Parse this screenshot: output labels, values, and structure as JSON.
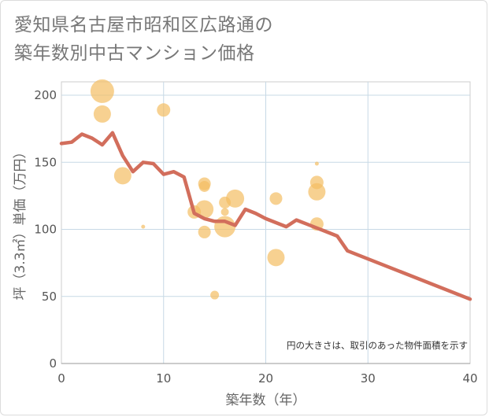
{
  "title_lines": [
    "愛知県名古屋市昭和区広路通の",
    "築年数別中古マンション価格"
  ],
  "colors": {
    "line": "#d26e5c",
    "bubble": "#f3bd63",
    "grid": "#c7d9e6",
    "plot_border": "#cccccc"
  },
  "chart_data": {
    "type": "scatter",
    "title": "愛知県名古屋市昭和区広路通の築年数別中古マンション価格",
    "xlabel": "築年数（年）",
    "ylabel": "坪（3.3㎡）単価（万円）",
    "xlim": [
      0,
      40
    ],
    "ylim": [
      0,
      210
    ],
    "xticks": [
      0,
      10,
      20,
      30,
      40
    ],
    "yticks": [
      0,
      50,
      100,
      150,
      200
    ],
    "grid": true,
    "annotation": "円の大きさは、取引のあった物件面積を示す",
    "series": [
      {
        "kind": "bubble",
        "points": [
          {
            "x": 4,
            "y": 203,
            "size": 15
          },
          {
            "x": 4,
            "y": 186,
            "size": 11
          },
          {
            "x": 10,
            "y": 189,
            "size": 8.5
          },
          {
            "x": 6,
            "y": 140,
            "size": 11
          },
          {
            "x": 8,
            "y": 102,
            "size": 2.5
          },
          {
            "x": 13,
            "y": 113,
            "size": 8.5
          },
          {
            "x": 14,
            "y": 134,
            "size": 8
          },
          {
            "x": 14,
            "y": 132,
            "size": 7
          },
          {
            "x": 14,
            "y": 115,
            "size": 11.5
          },
          {
            "x": 14,
            "y": 98,
            "size": 8
          },
          {
            "x": 15,
            "y": 51,
            "size": 5.5
          },
          {
            "x": 16,
            "y": 120,
            "size": 7.5
          },
          {
            "x": 16,
            "y": 113,
            "size": 5
          },
          {
            "x": 16,
            "y": 102,
            "size": 13.5
          },
          {
            "x": 17,
            "y": 123,
            "size": 11.5
          },
          {
            "x": 21,
            "y": 123,
            "size": 8
          },
          {
            "x": 21,
            "y": 79,
            "size": 11
          },
          {
            "x": 25,
            "y": 149,
            "size": 2.5
          },
          {
            "x": 25,
            "y": 135,
            "size": 8.5
          },
          {
            "x": 25,
            "y": 128,
            "size": 11
          },
          {
            "x": 25,
            "y": 104,
            "size": 8.5
          }
        ]
      },
      {
        "kind": "line",
        "points": [
          {
            "x": 0,
            "y": 164
          },
          {
            "x": 1,
            "y": 165
          },
          {
            "x": 2,
            "y": 171
          },
          {
            "x": 3,
            "y": 168
          },
          {
            "x": 4,
            "y": 163
          },
          {
            "x": 5,
            "y": 172
          },
          {
            "x": 6,
            "y": 155
          },
          {
            "x": 7,
            "y": 143
          },
          {
            "x": 8,
            "y": 150
          },
          {
            "x": 9,
            "y": 149
          },
          {
            "x": 10,
            "y": 141
          },
          {
            "x": 11,
            "y": 143
          },
          {
            "x": 12,
            "y": 139
          },
          {
            "x": 13,
            "y": 112
          },
          {
            "x": 14,
            "y": 108
          },
          {
            "x": 15,
            "y": 106
          },
          {
            "x": 16,
            "y": 106
          },
          {
            "x": 17,
            "y": 103
          },
          {
            "x": 18,
            "y": 115
          },
          {
            "x": 19,
            "y": 112
          },
          {
            "x": 20,
            "y": 108
          },
          {
            "x": 21,
            "y": 105
          },
          {
            "x": 22,
            "y": 102
          },
          {
            "x": 23,
            "y": 107
          },
          {
            "x": 24,
            "y": 104
          },
          {
            "x": 25,
            "y": 101
          },
          {
            "x": 26,
            "y": 98
          },
          {
            "x": 27,
            "y": 95
          },
          {
            "x": 28,
            "y": 84
          },
          {
            "x": 40,
            "y": 48
          }
        ]
      }
    ]
  }
}
